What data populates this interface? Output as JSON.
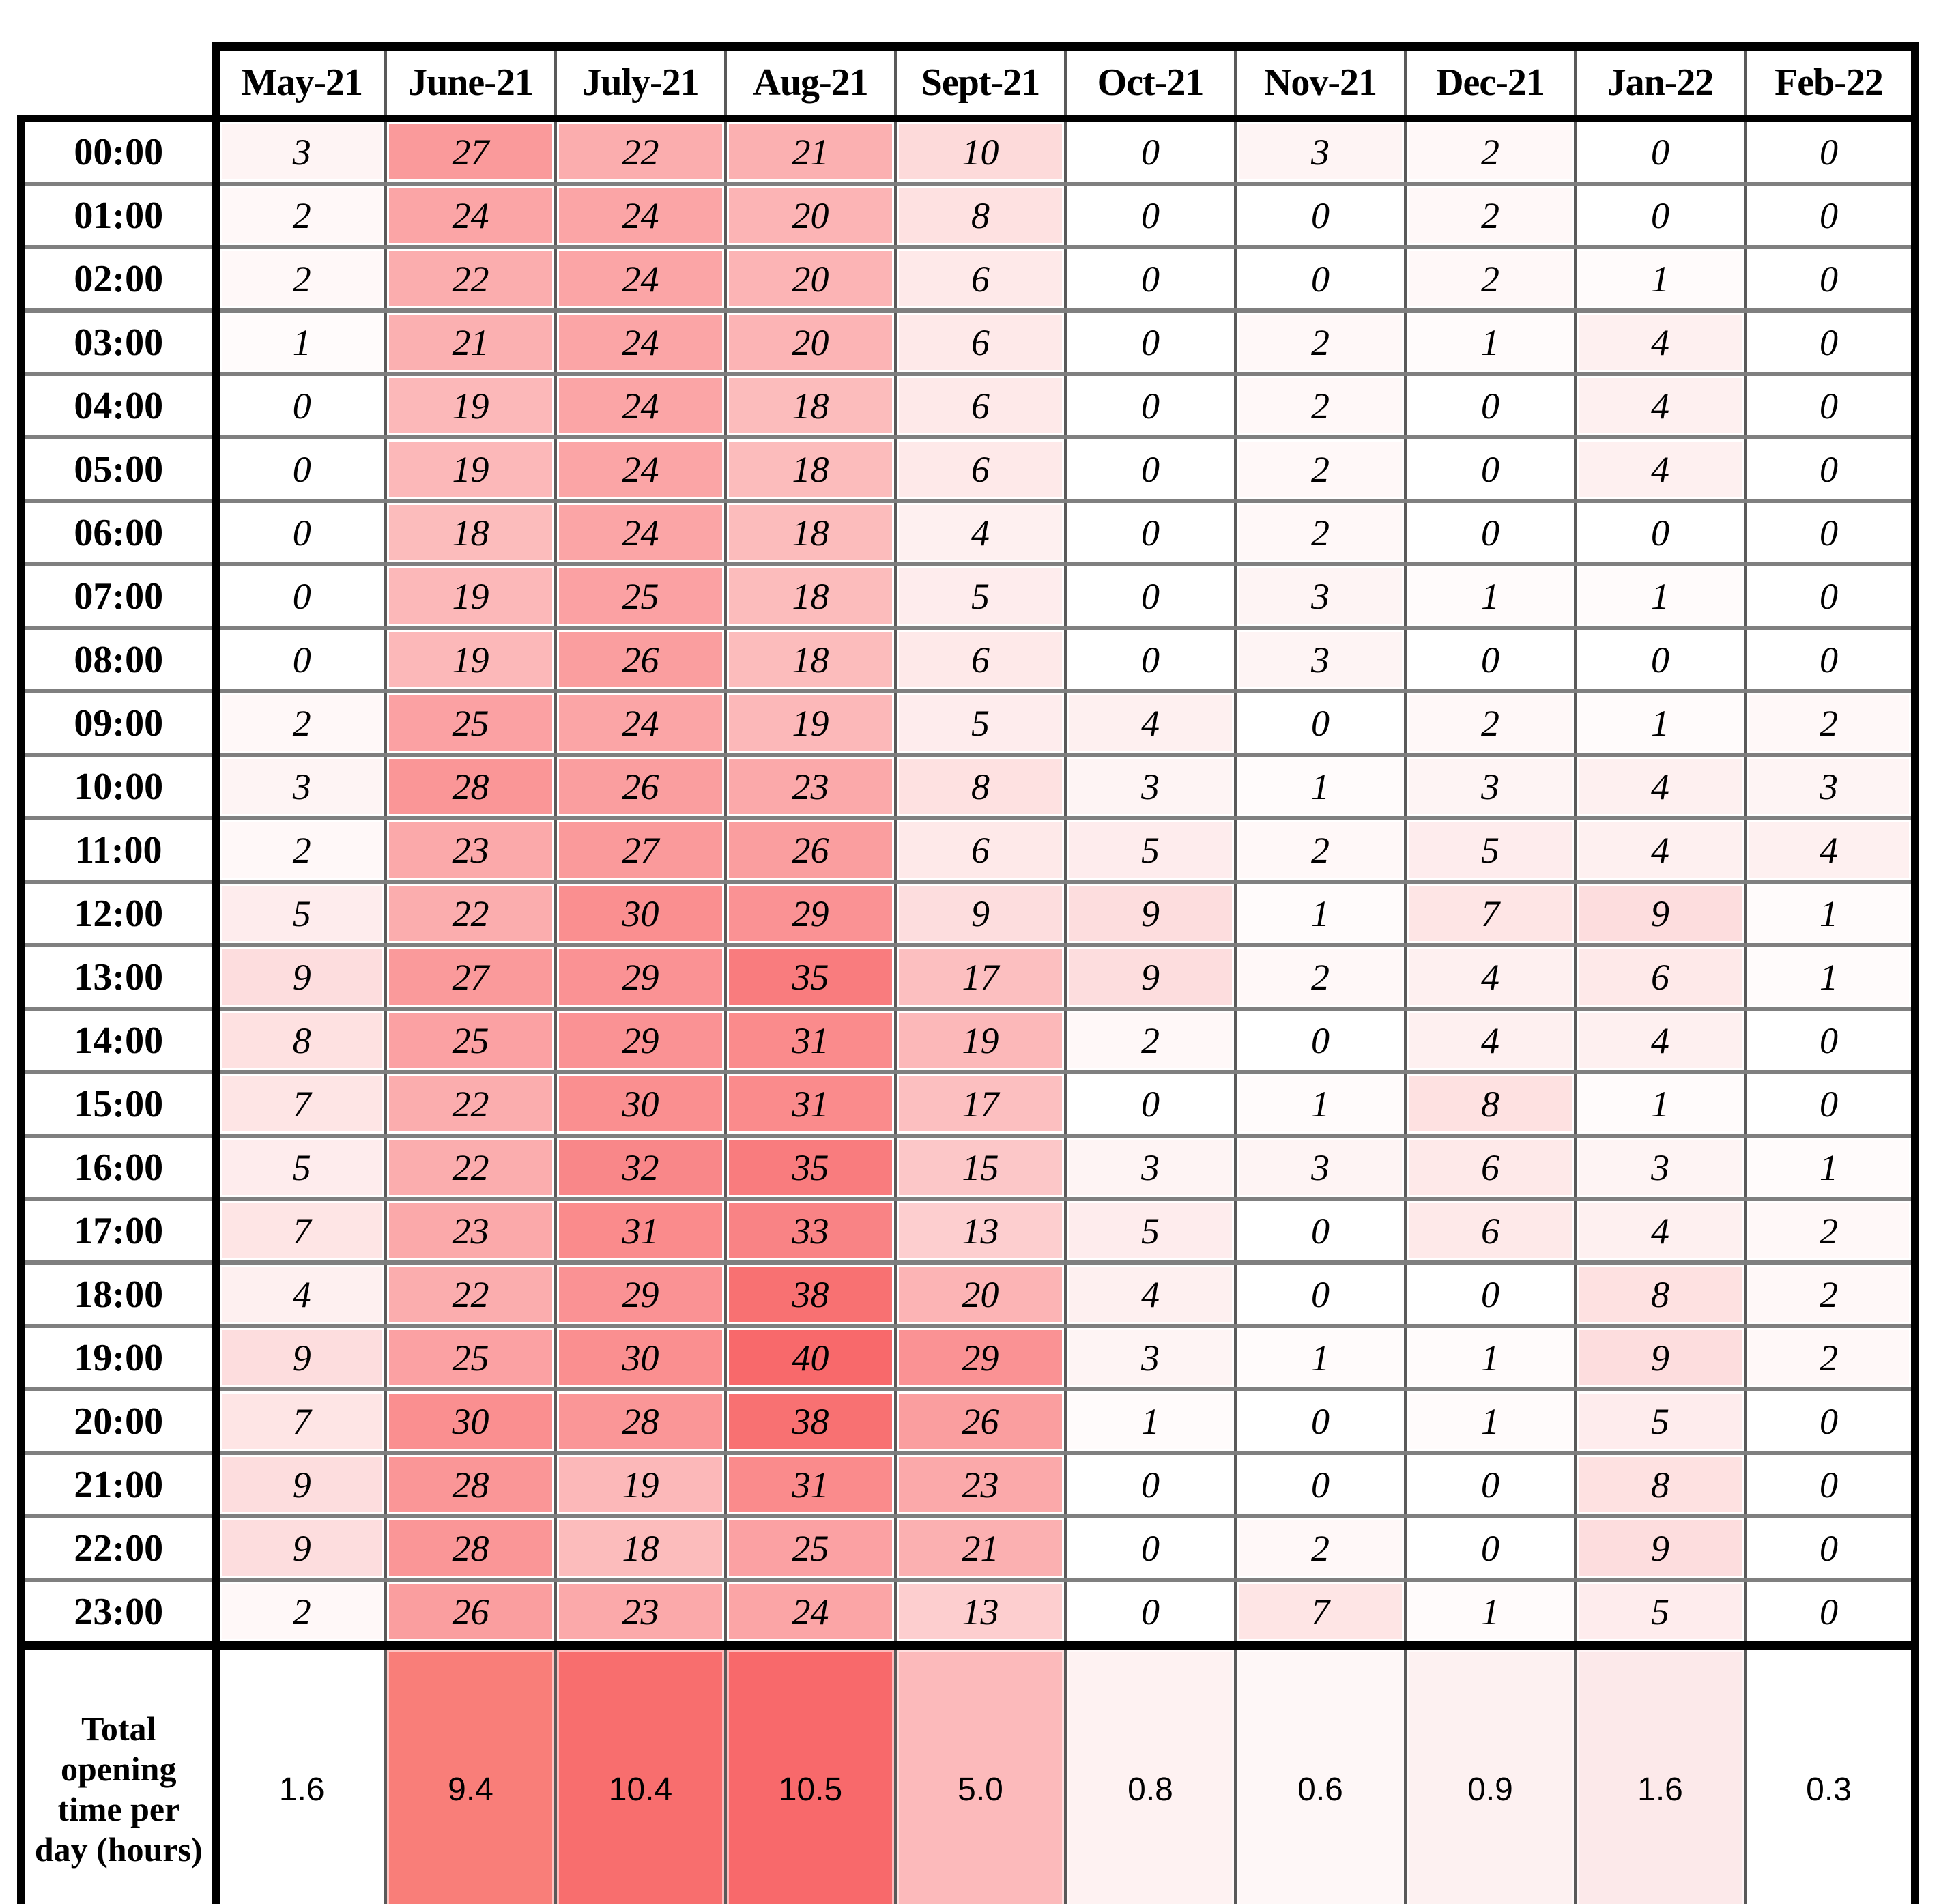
{
  "chart_data": {
    "type": "heatmap",
    "x_labels": [
      "May-21",
      "June-21",
      "July-21",
      "Aug-21",
      "Sept-21",
      "Oct-21",
      "Nov-21",
      "Dec-21",
      "Jan-22",
      "Feb-22"
    ],
    "y_labels": [
      "00:00",
      "01:00",
      "02:00",
      "03:00",
      "04:00",
      "05:00",
      "06:00",
      "07:00",
      "08:00",
      "09:00",
      "10:00",
      "11:00",
      "12:00",
      "13:00",
      "14:00",
      "15:00",
      "16:00",
      "17:00",
      "18:00",
      "19:00",
      "20:00",
      "21:00",
      "22:00",
      "23:00"
    ],
    "values": [
      [
        3,
        27,
        22,
        21,
        10,
        0,
        3,
        2,
        0,
        0
      ],
      [
        2,
        24,
        24,
        20,
        8,
        0,
        0,
        2,
        0,
        0
      ],
      [
        2,
        22,
        24,
        20,
        6,
        0,
        0,
        2,
        1,
        0
      ],
      [
        1,
        21,
        24,
        20,
        6,
        0,
        2,
        1,
        4,
        0
      ],
      [
        0,
        19,
        24,
        18,
        6,
        0,
        2,
        0,
        4,
        0
      ],
      [
        0,
        19,
        24,
        18,
        6,
        0,
        2,
        0,
        4,
        0
      ],
      [
        0,
        18,
        24,
        18,
        4,
        0,
        2,
        0,
        0,
        0
      ],
      [
        0,
        19,
        25,
        18,
        5,
        0,
        3,
        1,
        1,
        0
      ],
      [
        0,
        19,
        26,
        18,
        6,
        0,
        3,
        0,
        0,
        0
      ],
      [
        2,
        25,
        24,
        19,
        5,
        4,
        0,
        2,
        1,
        2
      ],
      [
        3,
        28,
        26,
        23,
        8,
        3,
        1,
        3,
        4,
        3
      ],
      [
        2,
        23,
        27,
        26,
        6,
        5,
        2,
        5,
        4,
        4
      ],
      [
        5,
        22,
        30,
        29,
        9,
        9,
        1,
        7,
        9,
        1
      ],
      [
        9,
        27,
        29,
        35,
        17,
        9,
        2,
        4,
        6,
        1
      ],
      [
        8,
        25,
        29,
        31,
        19,
        2,
        0,
        4,
        4,
        0
      ],
      [
        7,
        22,
        30,
        31,
        17,
        0,
        1,
        8,
        1,
        0
      ],
      [
        5,
        22,
        32,
        35,
        15,
        3,
        3,
        6,
        3,
        1
      ],
      [
        7,
        23,
        31,
        33,
        13,
        5,
        0,
        6,
        4,
        2
      ],
      [
        4,
        22,
        29,
        38,
        20,
        4,
        0,
        0,
        8,
        2
      ],
      [
        9,
        25,
        30,
        40,
        29,
        3,
        1,
        1,
        9,
        2
      ],
      [
        7,
        30,
        28,
        38,
        26,
        1,
        0,
        1,
        5,
        0
      ],
      [
        9,
        28,
        19,
        31,
        23,
        0,
        0,
        0,
        8,
        0
      ],
      [
        9,
        28,
        18,
        25,
        21,
        0,
        2,
        0,
        9,
        0
      ],
      [
        2,
        26,
        23,
        24,
        13,
        0,
        7,
        1,
        5,
        0
      ]
    ],
    "color_scale": {
      "min": 0,
      "max": 40,
      "min_color": "#FFFFFF",
      "max_color": "#F8696B"
    },
    "totals_row": {
      "label": "Total opening time per day (hours)",
      "values": [
        "1.6",
        "9.4",
        "10.4",
        "10.5",
        "5.0",
        "0.8",
        "0.6",
        "0.9",
        "1.6",
        "0.3"
      ],
      "colors": [
        "#FFFFFF",
        "#F97E79",
        "#F86E6E",
        "#F8696B",
        "#FCBABB",
        "#FEF2F2",
        "#FEF7F7",
        "#FDF1F1",
        "#FCE9EA",
        "#FFFFFF"
      ]
    },
    "legend_position": "none",
    "grid": true
  }
}
